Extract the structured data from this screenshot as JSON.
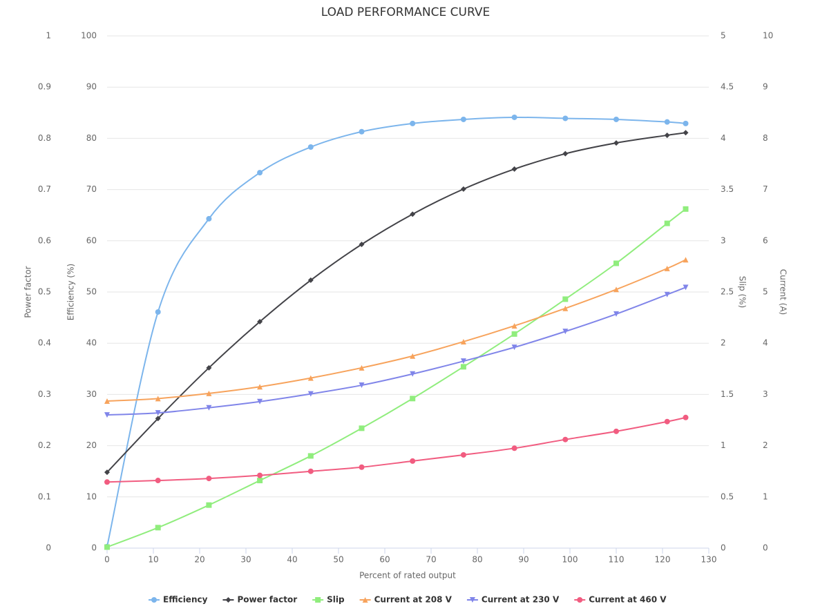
{
  "chart_data": {
    "type": "line",
    "title": "LOAD PERFORMANCE CURVE",
    "x_label": "Percent of rated output",
    "x": [
      0,
      11,
      22,
      33,
      44,
      55,
      66,
      77,
      88,
      99,
      110,
      121,
      125
    ],
    "xlim": [
      0,
      130
    ],
    "xticks": [
      0,
      10,
      20,
      30,
      40,
      50,
      60,
      70,
      80,
      90,
      100,
      110,
      120,
      130
    ],
    "y_axes": [
      {
        "label": "Power factor",
        "side": "left",
        "ylim": [
          0,
          1
        ],
        "yticks": [
          0,
          0.1,
          0.2,
          0.3,
          0.4,
          0.5,
          0.6,
          0.7,
          0.8,
          0.9,
          1
        ]
      },
      {
        "label": "Efficiency (%)",
        "side": "left",
        "grid": true,
        "ylim": [
          0,
          100
        ],
        "yticks": [
          0,
          10,
          20,
          30,
          40,
          50,
          60,
          70,
          80,
          90,
          100
        ]
      },
      {
        "label": "Slip (%)",
        "side": "right",
        "ylim": [
          0,
          5
        ],
        "yticks": [
          0,
          0.5,
          1,
          1.5,
          2,
          2.5,
          3,
          3.5,
          4,
          4.5,
          5
        ]
      },
      {
        "label": "Current (A)",
        "side": "right",
        "ylim": [
          0,
          10
        ],
        "yticks": [
          0,
          1,
          2,
          3,
          4,
          5,
          6,
          7,
          8,
          9,
          10
        ]
      }
    ],
    "series": [
      {
        "name": "Efficiency",
        "color": "#7cb5ec",
        "marker": "circle",
        "axis": 1,
        "values": [
          0.3,
          46.1,
          64.3,
          73.3,
          78.3,
          81.3,
          82.9,
          83.7,
          84.1,
          83.9,
          83.7,
          83.2,
          82.9
        ]
      },
      {
        "name": "Power factor",
        "color": "#434348",
        "marker": "diamond",
        "axis": 0,
        "values": [
          0.148,
          0.253,
          0.352,
          0.442,
          0.523,
          0.593,
          0.652,
          0.701,
          0.74,
          0.77,
          0.791,
          0.806,
          0.811
        ]
      },
      {
        "name": "Slip",
        "color": "#90ed7d",
        "marker": "square",
        "axis": 2,
        "values": [
          0.01,
          0.2,
          0.42,
          0.66,
          0.9,
          1.17,
          1.46,
          1.77,
          2.09,
          2.43,
          2.78,
          3.17,
          3.31
        ]
      },
      {
        "name": "Current at 208 V",
        "color": "#f7a35c",
        "marker": "triangle",
        "axis": 3,
        "values": [
          2.87,
          2.92,
          3.02,
          3.15,
          3.32,
          3.52,
          3.75,
          4.03,
          4.34,
          4.68,
          5.05,
          5.46,
          5.63
        ]
      },
      {
        "name": "Current at 230 V",
        "color": "#8085e9",
        "marker": "triangle-down",
        "axis": 3,
        "values": [
          2.6,
          2.64,
          2.74,
          2.86,
          3.01,
          3.18,
          3.4,
          3.65,
          3.92,
          4.23,
          4.57,
          4.95,
          5.09
        ]
      },
      {
        "name": "Current at 460 V",
        "color": "#f15c80",
        "marker": "circle",
        "axis": 3,
        "values": [
          1.29,
          1.32,
          1.36,
          1.42,
          1.5,
          1.58,
          1.7,
          1.82,
          1.95,
          2.12,
          2.28,
          2.47,
          2.55
        ]
      }
    ]
  }
}
